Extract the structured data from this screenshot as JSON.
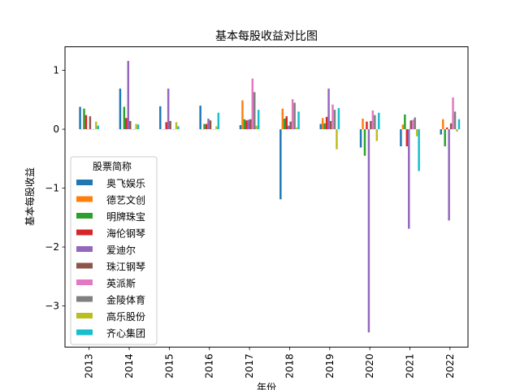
{
  "chart_data": {
    "type": "bar",
    "title": "基本每股收益对比图",
    "xlabel": "年份",
    "ylabel": "基本每股收益",
    "categories": [
      "2013",
      "2014",
      "2015",
      "2016",
      "2017",
      "2018",
      "2019",
      "2020",
      "2021",
      "2022"
    ],
    "ylim": [
      -3.7,
      1.4
    ],
    "yticks": [
      {
        "value": 1,
        "label": "1"
      },
      {
        "value": 0,
        "label": "0"
      },
      {
        "value": -1,
        "label": "−1"
      },
      {
        "value": -2,
        "label": "−2"
      },
      {
        "value": -3,
        "label": "−3"
      }
    ],
    "grid": false,
    "legend": {
      "title": "股票简称",
      "placement": "center-left"
    },
    "series": [
      {
        "name": "奥飞娱乐",
        "color": "#1f77b4",
        "values": [
          0.38,
          0.69,
          0.39,
          0.4,
          0.07,
          -1.19,
          0.09,
          -0.31,
          -0.29,
          -0.09
        ]
      },
      {
        "name": "德艺文创",
        "color": "#ff7f0e",
        "values": [
          0.0,
          0.0,
          0.0,
          0.0,
          0.49,
          0.35,
          0.19,
          0.18,
          0.08,
          0.17
        ]
      },
      {
        "name": "明牌珠宝",
        "color": "#2ca02c",
        "values": [
          0.35,
          0.38,
          0.0,
          0.09,
          0.17,
          0.18,
          0.1,
          -0.45,
          0.25,
          -0.29
        ]
      },
      {
        "name": "海伦钢琴",
        "color": "#d62728",
        "values": [
          0.24,
          0.19,
          0.12,
          0.09,
          0.15,
          0.22,
          0.21,
          0.13,
          -0.29,
          0.03
        ]
      },
      {
        "name": "爱迪尔",
        "color": "#9467bd",
        "values": [
          0.0,
          1.16,
          0.69,
          0.18,
          0.16,
          0.06,
          0.69,
          -3.45,
          -1.69,
          -1.55
        ]
      },
      {
        "name": "珠江钢琴",
        "color": "#8c564b",
        "values": [
          0.22,
          0.14,
          0.14,
          0.15,
          0.17,
          0.13,
          0.14,
          0.14,
          0.15,
          0.1
        ]
      },
      {
        "name": "英派斯",
        "color": "#e377c2",
        "values": [
          0.0,
          0.0,
          0.0,
          0.0,
          0.86,
          0.51,
          0.42,
          0.32,
          0.16,
          0.54
        ]
      },
      {
        "name": "金陵体育",
        "color": "#7f7f7f",
        "values": [
          0.0,
          0.0,
          0.0,
          0.0,
          0.63,
          0.45,
          0.33,
          0.24,
          0.2,
          0.3
        ]
      },
      {
        "name": "高乐股份",
        "color": "#bcbd22",
        "values": [
          0.13,
          0.09,
          0.12,
          0.05,
          0.06,
          0.03,
          -0.34,
          -0.2,
          -0.12,
          -0.04
        ]
      },
      {
        "name": "齐心集团",
        "color": "#17becf",
        "values": [
          0.06,
          0.08,
          0.05,
          0.28,
          0.33,
          0.3,
          0.36,
          0.28,
          -0.71,
          0.17
        ]
      }
    ]
  }
}
